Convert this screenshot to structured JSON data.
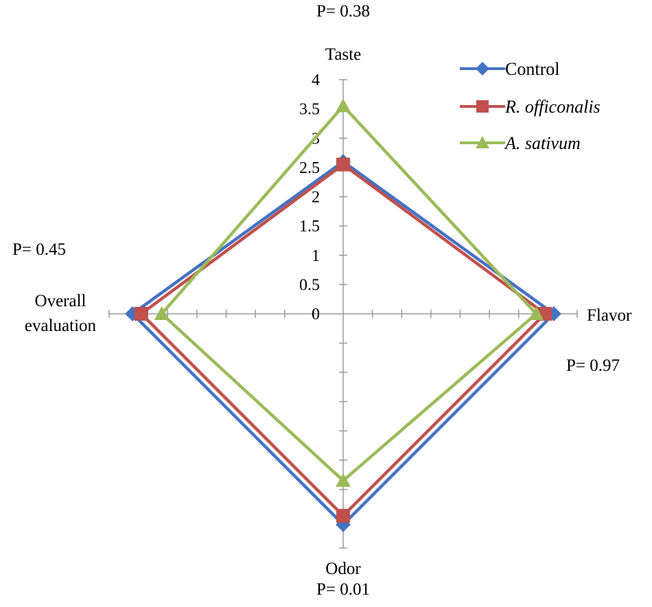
{
  "chart_data": {
    "type": "radar",
    "title": "",
    "axes": [
      {
        "name": "Taste",
        "p_value": "P= 0.38"
      },
      {
        "name": "Flavor",
        "p_value": "P= 0.97"
      },
      {
        "name": "Odor",
        "p_value": "P= 0.01"
      },
      {
        "name": "Overall evaluation",
        "name_lines": [
          "Overall",
          "evaluation"
        ],
        "p_value": "P= 0.45"
      }
    ],
    "range": [
      0,
      4
    ],
    "ticks": [
      "0",
      "0.5",
      "1",
      "1.5",
      "2",
      "2.5",
      "3",
      "3.5",
      "4"
    ],
    "grid": false,
    "legend_position": "top-right",
    "series": [
      {
        "name": "Control",
        "italic": false,
        "color": "#4472C4",
        "marker": "diamond",
        "values": [
          2.6,
          3.6,
          3.6,
          3.6
        ]
      },
      {
        "name": "R. officonalis",
        "italic": true,
        "color": "#C0504D",
        "marker": "square",
        "values": [
          2.55,
          3.45,
          3.45,
          3.45
        ]
      },
      {
        "name": "A. sativum",
        "italic": true,
        "color": "#9BBB59",
        "marker": "triangle",
        "values": [
          3.55,
          3.3,
          2.85,
          3.1
        ]
      }
    ]
  }
}
